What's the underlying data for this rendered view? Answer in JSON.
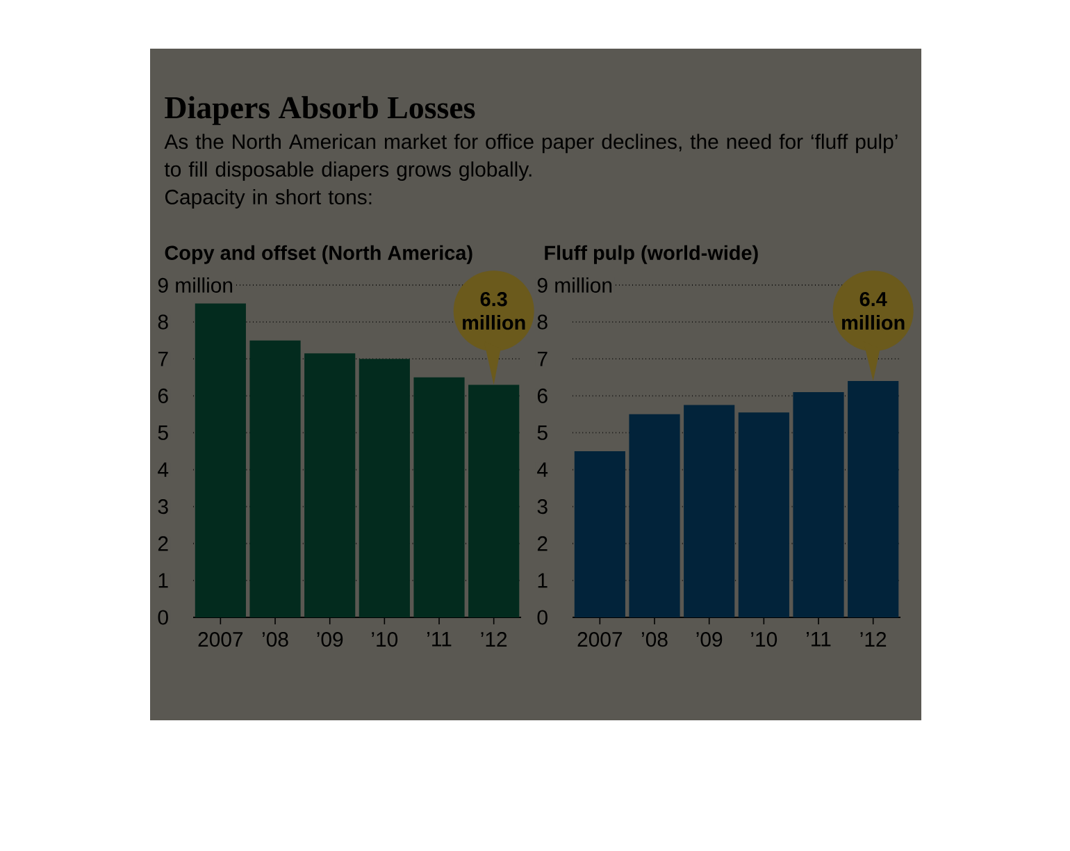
{
  "chart_data": [
    {
      "type": "bar",
      "title": "Copy and offset (North America)",
      "categories": [
        "2007",
        "’08",
        "’09",
        "’10",
        "’11",
        "’12"
      ],
      "values": [
        8.5,
        7.5,
        7.15,
        7.0,
        6.5,
        6.3
      ],
      "color": "#032b1e",
      "ylim": [
        0,
        9
      ],
      "yticks": [
        0,
        1,
        2,
        3,
        4,
        5,
        6,
        7,
        8,
        {
          "value": 9,
          "label": "9 million"
        }
      ],
      "grid": "y",
      "annotations": [
        "Diapers Absorb Losses",
        "As the North American market for office paper declines, the need for ‘fluff pulp’ to fill disposable diapers grows globally.",
        "Capacity in short tons:",
        {
          "text": "6.3 million",
          "x": "’12",
          "y": 6.3
        }
      ]
    },
    {
      "type": "bar",
      "title": "Fluff pulp (world-wide)",
      "categories": [
        "2007",
        "’08",
        "’09",
        "’10",
        "’11",
        "’12"
      ],
      "values": [
        4.5,
        5.5,
        5.75,
        5.55,
        6.1,
        6.4
      ],
      "color": "#02233a",
      "ylim": [
        0,
        9
      ],
      "yticks": [
        0,
        1,
        2,
        3,
        4,
        5,
        6,
        7,
        8,
        {
          "value": 9,
          "label": "9 million"
        }
      ],
      "grid": "y",
      "annotations": [
        {
          "text": "6.4 million",
          "x": "’12",
          "y": 6.4
        }
      ]
    }
  ]
}
